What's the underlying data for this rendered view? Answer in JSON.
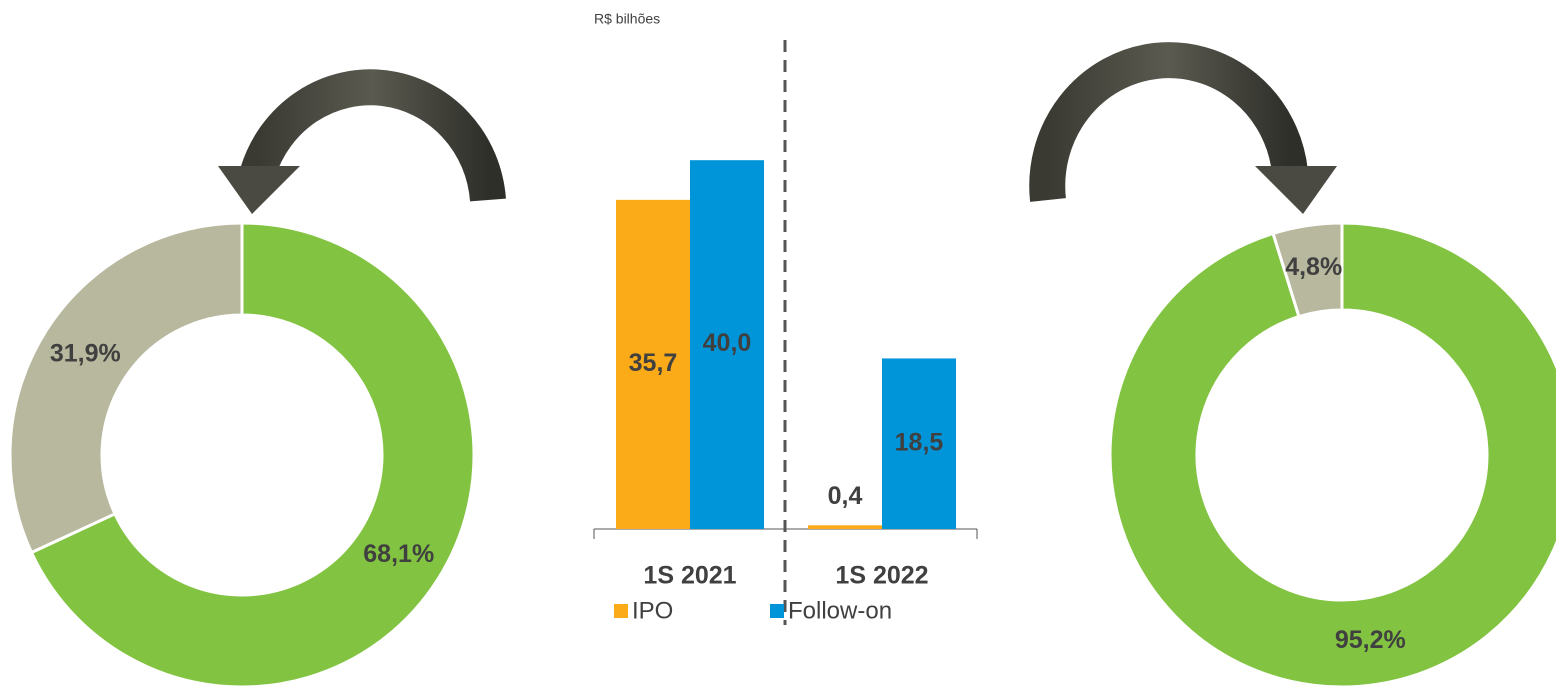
{
  "chart_data": [
    {
      "type": "donut",
      "values": [
        68.1,
        31.9
      ],
      "value_labels": [
        "68,1%",
        "31,9%"
      ],
      "colors": [
        "#82c341",
        "#b8b89e"
      ]
    },
    {
      "type": "bar",
      "subtitle": "R$ bilhões",
      "categories": [
        "1S 2021",
        "1S 2022"
      ],
      "series": [
        {
          "name": "IPO",
          "color": "#fbab18",
          "values": [
            35.7,
            0.4
          ],
          "value_labels": [
            "35,7",
            "0,4"
          ]
        },
        {
          "name": "Follow-on",
          "color": "#0095d9",
          "values": [
            40.0,
            18.5
          ],
          "value_labels": [
            "40,0",
            "18,5"
          ]
        }
      ]
    },
    {
      "type": "donut",
      "values": [
        95.2,
        4.8
      ],
      "value_labels": [
        "95,2%",
        "4,8%"
      ],
      "colors": [
        "#82c341",
        "#b8b89e"
      ]
    }
  ]
}
